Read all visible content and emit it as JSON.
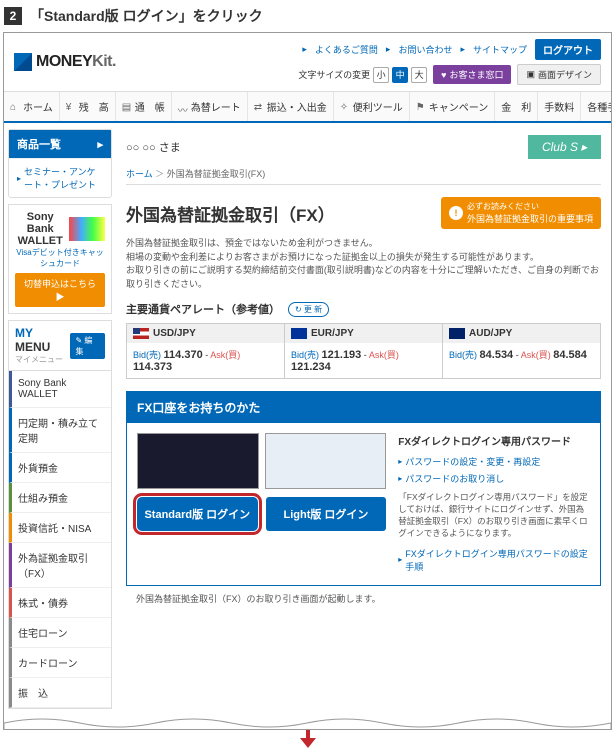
{
  "instruction": {
    "num": "2",
    "text": "「Standard版 ログイン」をクリック"
  },
  "logo": {
    "brand": "MONEY",
    "suffix": "Kit."
  },
  "toplinks": {
    "faq": "よくあるご質問",
    "contact": "お問い合わせ",
    "sitemap": "サイトマップ",
    "logout": "ログアウト"
  },
  "fontsize": {
    "label": "文字サイズの変更",
    "s": "小",
    "m": "中",
    "l": "大"
  },
  "topbtn": {
    "support": "お客さま窓口",
    "design": "画面デザイン"
  },
  "nav": {
    "home": "ホーム",
    "balance": "残　高",
    "passbook": "通　帳",
    "rate": "為替レート",
    "transfer": "振込・入出金",
    "tools": "便利ツール",
    "campaign": "キャンペーン",
    "interest": "金　利",
    "fee": "手数料",
    "misc": "各種手続"
  },
  "side": {
    "products": "商品一覧",
    "seminar": "セミナー・アンケート・プレゼント"
  },
  "sony": {
    "t1": "Sony Bank",
    "t2": "WALLET",
    "sub": "Visaデビット付きキャッシュカード",
    "btn": "切替申込はこちら ▶"
  },
  "mymenu": {
    "title": "MY",
    "title2": "MENU",
    "sub": "マイメニュー",
    "edit": "✎ 編集",
    "items": [
      "Sony Bank WALLET",
      "円定期・積み立て定期",
      "外貨預金",
      "仕組み預金",
      "投資信託・NISA",
      "外為証拠金取引（FX）",
      "株式・債券",
      "住宅ローン",
      "カードローン",
      "振　込"
    ]
  },
  "greet": "○○ ○○ さま",
  "clubs": "Club S",
  "breadcrumb": {
    "home": "ホーム",
    "cur": "外国為替証拠金取引(FX)"
  },
  "heading": "外国為替証拠金取引（FX）",
  "warn": {
    "t1": "必ずお読みください",
    "t2": "外国為替証拠金取引の重要事項"
  },
  "desc": "外国為替証拠金取引は、預金ではないため金利がつきません。\n相場の変動や金利差によりお客さまがお預けになった証拠金以上の損失が発生する可能性があります。\nお取り引きの前にご説明する契約締結前交付書面(取引説明書)などの内容を十分にご理解いただき、ご自身の判断でお取り引きください。",
  "rates": {
    "title": "主要通貨ペアレート（参考値）",
    "update": "↻ 更 新",
    "pairs": [
      {
        "flag": "us",
        "name": "USD/JPY",
        "bid": "114.370",
        "ask": "114.373"
      },
      {
        "flag": "eu",
        "name": "EUR/JPY",
        "bid": "121.193",
        "ask": "121.234"
      },
      {
        "flag": "au",
        "name": "AUD/JPY",
        "bid": "84.534",
        "ask": "84.584"
      }
    ],
    "bidlbl": "Bid(売)",
    "asklbl": "Ask(買)"
  },
  "fxbox": {
    "title": "FX口座をお持ちのかた",
    "std": "Standard版 ログイン",
    "light": "Light版 ログイン",
    "rtitle": "FXダイレクトログイン専用パスワード",
    "r1": "パスワードの設定・変更・再設定",
    "r2": "パスワードのお取り消し",
    "rdesc": "「FXダイレクトログイン専用パスワード」を設定しておけば、銀行サイトにログインせず、外国為替証拠金取引（FX）のお取り引き画面に素早くログインできるようになります。",
    "r3": "FXダイレクトログイン専用パスワードの設定手順"
  },
  "footnote": "外国為替証拠金取引（FX）のお取り引き画面が起動します。"
}
